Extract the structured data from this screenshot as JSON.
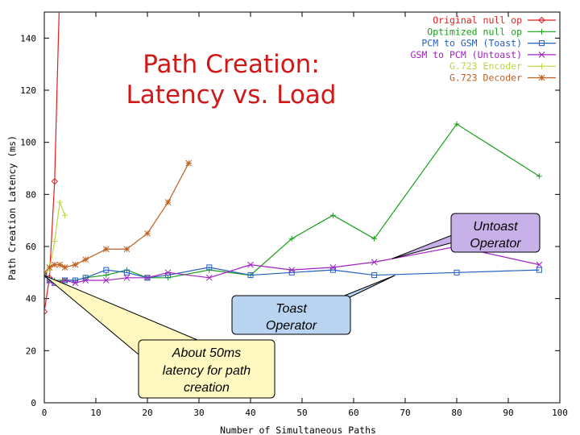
{
  "chart_data": {
    "type": "line",
    "title_lines": [
      "Path Creation:",
      "Latency vs. Load"
    ],
    "xlabel": "Number of Simultaneous Paths",
    "ylabel": "Path Creation Latency (ms)",
    "xlim": [
      0,
      100
    ],
    "ylim": [
      0,
      150
    ],
    "xticks": [
      0,
      10,
      20,
      30,
      40,
      50,
      60,
      70,
      80,
      90,
      100
    ],
    "yticks": [
      0,
      20,
      40,
      60,
      80,
      100,
      120,
      140
    ],
    "grid": false,
    "legend_position": "top-right",
    "series": [
      {
        "name": "Original null op",
        "color": "#e02020",
        "marker": "diamond",
        "x": [
          0,
          1,
          2,
          3
        ],
        "y": [
          35,
          48,
          85,
          160
        ]
      },
      {
        "name": "Optimized null op",
        "color": "#18a018",
        "marker": "plus",
        "x": [
          0,
          1,
          2,
          4,
          6,
          8,
          12,
          16,
          20,
          24,
          32,
          40,
          48,
          56,
          64,
          80,
          96
        ],
        "y": [
          50,
          47,
          47,
          47,
          47,
          48,
          49,
          51,
          48,
          48,
          51,
          49,
          63,
          72,
          63,
          107,
          87
        ]
      },
      {
        "name": "PCM to GSM (Toast)",
        "color": "#2060c0",
        "marker": "square",
        "x": [
          0,
          1,
          2,
          4,
          6,
          8,
          12,
          16,
          20,
          24,
          32,
          40,
          48,
          56,
          64,
          80,
          96
        ],
        "y": [
          49,
          47,
          46,
          47,
          47,
          48,
          51,
          50,
          48,
          49,
          52,
          49,
          50,
          51,
          49,
          50,
          51
        ]
      },
      {
        "name": "GSM to PCM (Untoast)",
        "color": "#a020c0",
        "marker": "x",
        "x": [
          0,
          1,
          2,
          4,
          6,
          8,
          12,
          16,
          20,
          24,
          32,
          40,
          48,
          56,
          64,
          80,
          96
        ],
        "y": [
          49,
          47,
          46,
          47,
          46,
          47,
          47,
          48,
          48,
          50,
          48,
          53,
          51,
          52,
          54,
          60,
          53
        ]
      },
      {
        "name": "G.723 Encoder",
        "color": "#b8d840",
        "marker": "plus",
        "x": [
          0,
          1,
          2,
          3,
          4
        ],
        "y": [
          50,
          51,
          62,
          77,
          72
        ]
      },
      {
        "name": "G.723 Decoder",
        "color": "#c06020",
        "marker": "star",
        "x": [
          0,
          1,
          2,
          3,
          4,
          6,
          8,
          12,
          16,
          20,
          24,
          28
        ],
        "y": [
          50,
          52,
          53,
          53,
          52,
          53,
          55,
          59,
          59,
          65,
          77,
          92
        ]
      }
    ],
    "annotations": [
      {
        "id": "untoast",
        "lines": [
          "Untoast",
          "Operator"
        ],
        "fill": "#c8b0e8"
      },
      {
        "id": "toast",
        "lines": [
          "Toast",
          "Operator"
        ],
        "fill": "#b8d4f0"
      },
      {
        "id": "about",
        "lines": [
          "About 50ms",
          "latency for path",
          "creation"
        ],
        "fill": "#fff8c0"
      }
    ]
  }
}
